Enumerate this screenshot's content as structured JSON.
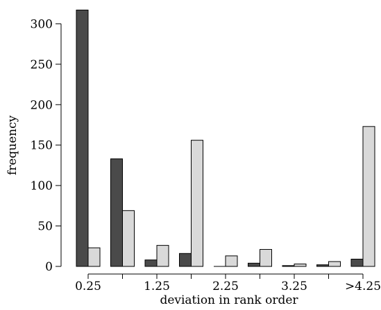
{
  "chart_data": {
    "type": "bar",
    "xlabel": "deviation in rank order",
    "ylabel": "frequency",
    "ylim": [
      0,
      320
    ],
    "yticks": [
      0,
      50,
      100,
      150,
      200,
      250,
      300
    ],
    "categories": [
      "0.25",
      "",
      "1.25",
      "",
      "2.25",
      "",
      "3.25",
      "",
      ">4.25"
    ],
    "series": [
      {
        "color": "#4a4a4a",
        "values": [
          317,
          133,
          8,
          16,
          0,
          4,
          1,
          2,
          9
        ]
      },
      {
        "color": "#d9d9d9",
        "values": [
          23,
          69,
          26,
          156,
          13,
          21,
          3,
          6,
          173
        ]
      }
    ],
    "grid": false,
    "legend": "none"
  }
}
